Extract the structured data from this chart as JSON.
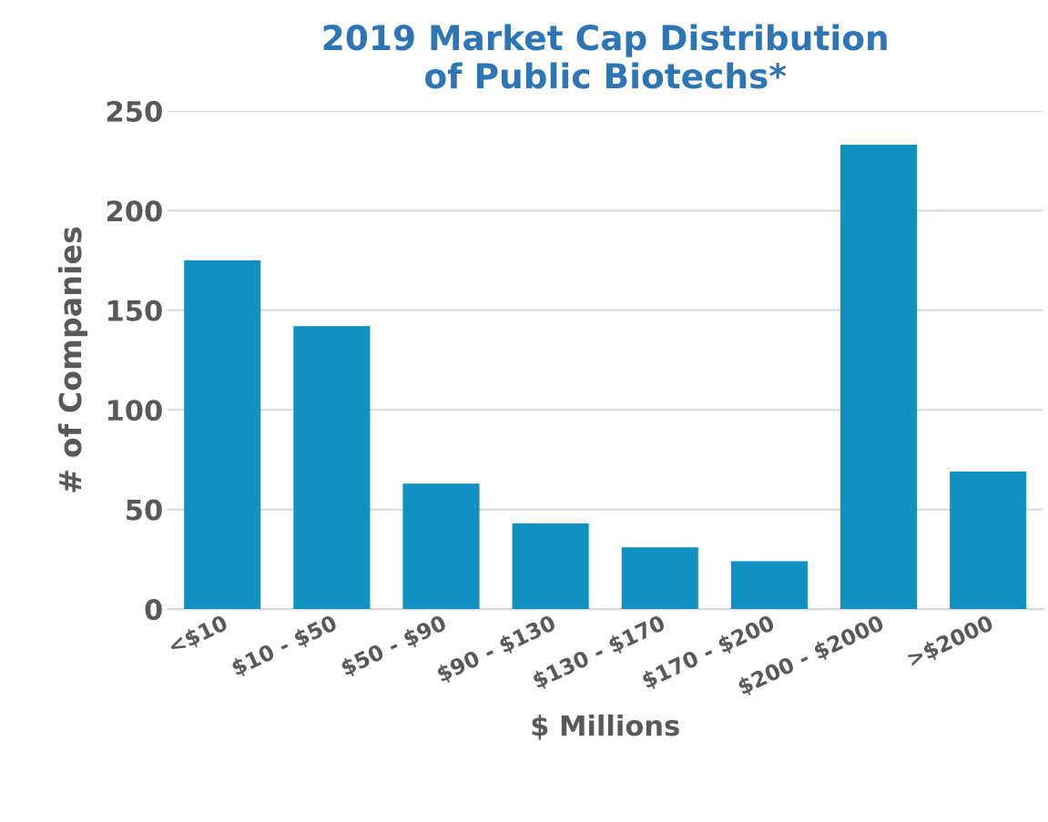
{
  "chart_data": {
    "type": "bar",
    "title": "2019 Market Cap Distribution\nof Public Biotechs*",
    "xlabel": "$ Millions",
    "ylabel": "# of Companies",
    "categories": [
      "<$10",
      "$10 - $50",
      "$50 - $90",
      "$90 - $130",
      "$130 - $170",
      "$170 - $200",
      "$200 - $2000",
      ">$2000"
    ],
    "values": [
      175,
      142,
      63,
      43,
      31,
      24,
      233,
      69
    ],
    "color": "#1191c1",
    "ylim": [
      0,
      250
    ],
    "yticks": [
      0,
      50,
      100,
      150,
      200,
      250
    ],
    "grid": "y"
  }
}
